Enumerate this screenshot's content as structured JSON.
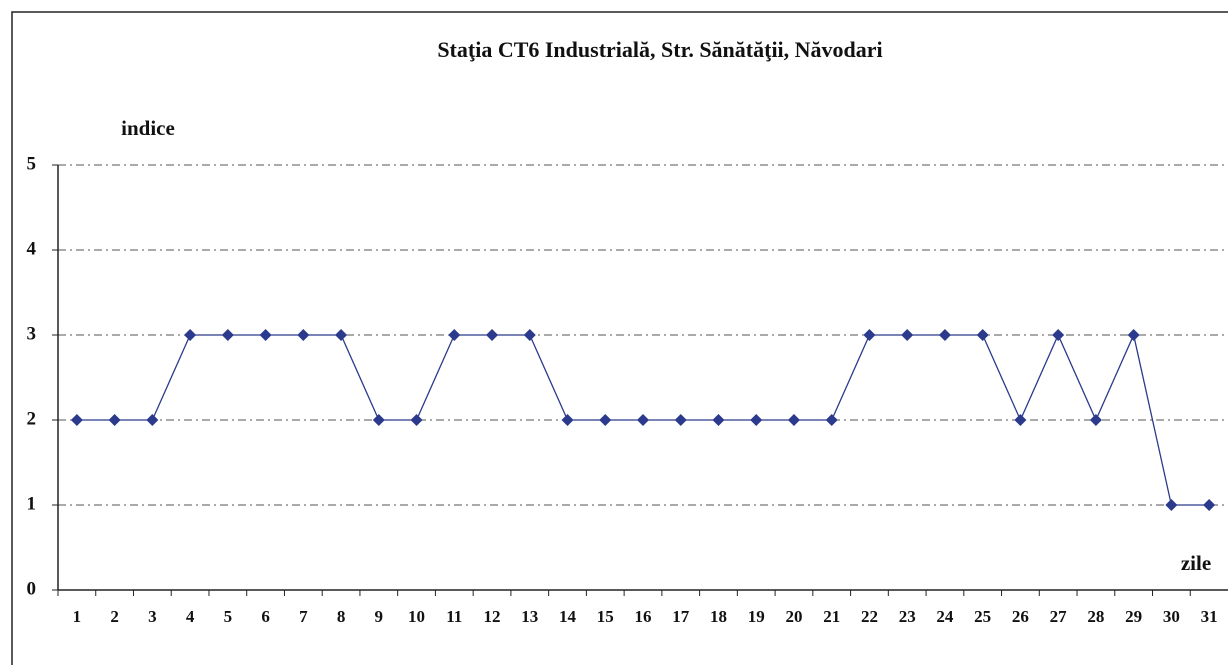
{
  "chart_data": {
    "type": "line",
    "title": "Staţia CT6 Industrială,  Str. Sănătăţii, Năvodari",
    "y_label": "indice",
    "x_label": "zile",
    "categories": [
      "1",
      "2",
      "3",
      "4",
      "5",
      "6",
      "7",
      "8",
      "9",
      "10",
      "11",
      "12",
      "13",
      "14",
      "15",
      "16",
      "17",
      "18",
      "19",
      "20",
      "21",
      "22",
      "23",
      "24",
      "25",
      "26",
      "27",
      "28",
      "29",
      "30",
      "31"
    ],
    "values": [
      2,
      2,
      2,
      3,
      3,
      3,
      3,
      3,
      2,
      2,
      3,
      3,
      3,
      2,
      2,
      2,
      2,
      2,
      2,
      2,
      2,
      3,
      3,
      3,
      3,
      2,
      3,
      2,
      3,
      1,
      1
    ],
    "color": "#2b3a8c",
    "ylim": [
      0,
      5
    ],
    "yticks": [
      0,
      1,
      2,
      3,
      4,
      5
    ],
    "grid": true
  }
}
